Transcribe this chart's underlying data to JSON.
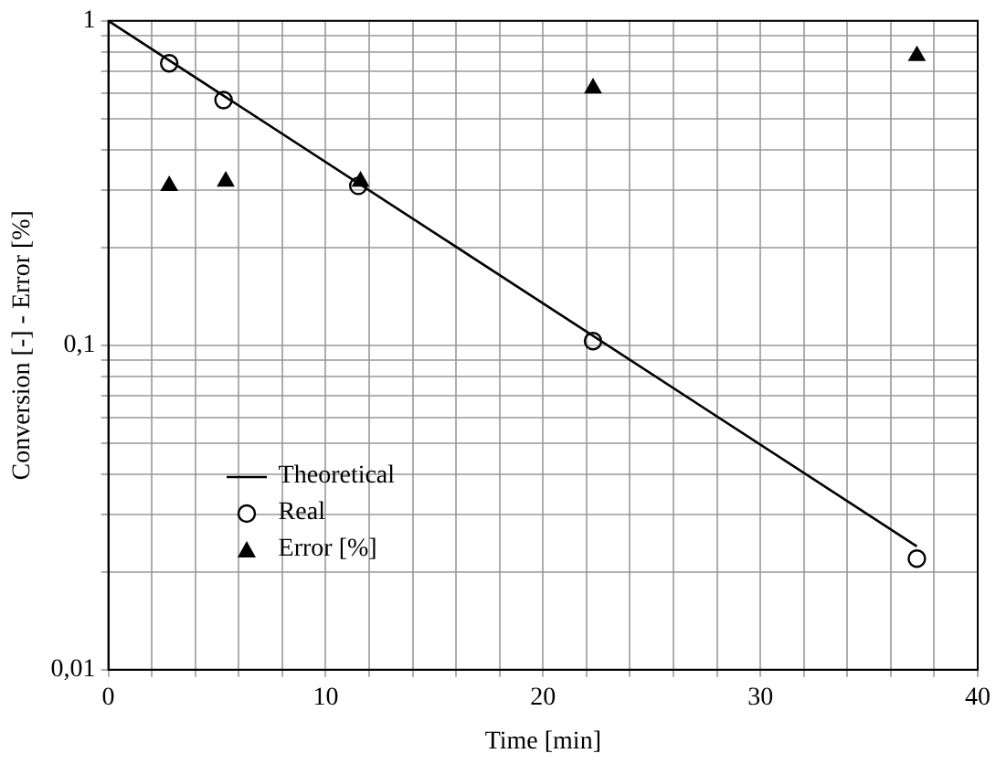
{
  "chart_data": {
    "type": "line",
    "xlabel": "Time [min]",
    "ylabel": "Conversion [-] - Error [%]",
    "log": "y",
    "grid": true,
    "legend": "bottom left",
    "xlim": [
      0,
      40
    ],
    "xticks": [
      0,
      {
        "value": 2,
        "label": null
      },
      {
        "value": 4,
        "label": null
      },
      {
        "value": 6,
        "label": null
      },
      {
        "value": 8,
        "label": null
      },
      10,
      {
        "value": 12,
        "label": null
      },
      {
        "value": 14,
        "label": null
      },
      {
        "value": 16,
        "label": null
      },
      {
        "value": 18,
        "label": null
      },
      20,
      {
        "value": 22,
        "label": null
      },
      {
        "value": 24,
        "label": null
      },
      {
        "value": 26,
        "label": null
      },
      {
        "value": 28,
        "label": null
      },
      30,
      {
        "value": 32,
        "label": null
      },
      {
        "value": 34,
        "label": null
      },
      {
        "value": 36,
        "label": null
      },
      {
        "value": 38,
        "label": null
      },
      40
    ],
    "ylim": [
      0.01,
      1
    ],
    "yticks": [
      {
        "value": 0.01,
        "label": "0,01"
      },
      {
        "value": 0.02,
        "label": null
      },
      {
        "value": 0.03,
        "label": null
      },
      {
        "value": 0.04,
        "label": null
      },
      {
        "value": 0.05,
        "label": null
      },
      {
        "value": 0.06,
        "label": null
      },
      {
        "value": 0.07,
        "label": null
      },
      {
        "value": 0.08,
        "label": null
      },
      {
        "value": 0.09,
        "label": null
      },
      {
        "value": 0.1,
        "label": "0,1"
      },
      {
        "value": 0.2,
        "label": null
      },
      {
        "value": 0.3,
        "label": null
      },
      {
        "value": 0.4,
        "label": null
      },
      {
        "value": 0.5,
        "label": null
      },
      {
        "value": 0.6,
        "label": null
      },
      {
        "value": 0.7,
        "label": null
      },
      {
        "value": 0.8,
        "label": null
      },
      {
        "value": 0.9,
        "label": null
      },
      1
    ],
    "series": [
      {
        "name": "Theoretical",
        "type": "line",
        "marker": "none",
        "line_style": "solid",
        "color": "#000000",
        "x": [
          0,
          37.2
        ],
        "values": [
          1,
          0.024
        ]
      },
      {
        "name": "Real",
        "type": "scatter",
        "marker": "circle",
        "color": "#000000",
        "x": [
          2.8,
          5.3,
          11.5,
          22.3,
          37.2
        ],
        "values": [
          0.74,
          0.57,
          0.31,
          0.103,
          0.022
        ]
      },
      {
        "name": "Error [%]",
        "type": "scatter",
        "marker": "triangle",
        "color": "#000000",
        "x": [
          2.8,
          5.4,
          11.6,
          22.3,
          37.2
        ],
        "values": [
          0.31,
          0.32,
          0.32,
          0.62,
          0.78
        ]
      }
    ]
  }
}
